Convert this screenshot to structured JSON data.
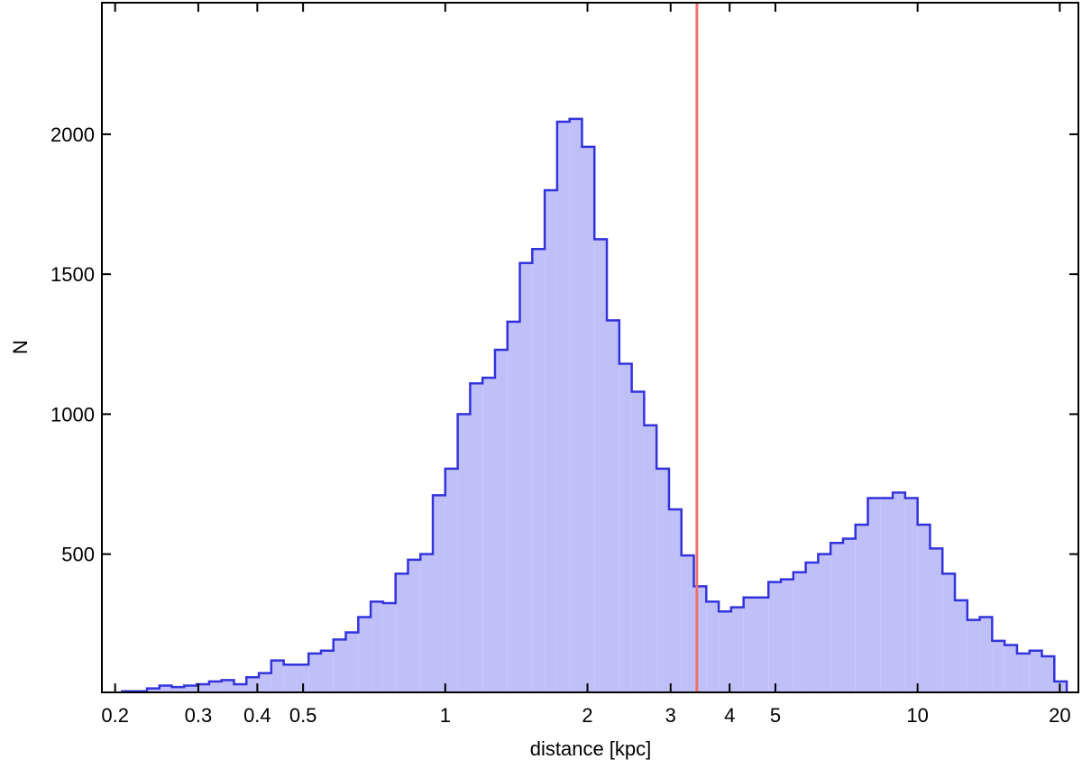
{
  "chart_data": {
    "type": "histogram",
    "x_label": "distance [kpc]",
    "y_label": "N",
    "xscale": "log",
    "bins": [
      0.1833,
      0.1948,
      0.2069,
      0.2198,
      0.2336,
      0.2482,
      0.2637,
      0.2801,
      0.2976,
      0.3162,
      0.336,
      0.357,
      0.3793,
      0.403,
      0.4281,
      0.4549,
      0.4833,
      0.5135,
      0.5456,
      0.5796,
      0.6158,
      0.6543,
      0.6952,
      0.7386,
      0.7848,
      0.8338,
      0.8859,
      0.9412,
      1.0,
      1.0625,
      1.1288,
      1.1993,
      1.2743,
      1.3539,
      1.4384,
      1.5283,
      1.6238,
      1.7252,
      1.833,
      1.9475,
      2.0691,
      2.1984,
      2.3357,
      2.4816,
      2.6367,
      2.8014,
      2.9764,
      3.1623,
      3.3598,
      3.5697,
      3.7927,
      4.0296,
      4.2813,
      4.5487,
      4.8329,
      5.1348,
      5.4555,
      5.7963,
      6.1584,
      6.5431,
      6.9519,
      7.3862,
      7.8476,
      8.3378,
      8.8587,
      9.4121,
      10.0,
      10.625,
      11.288,
      11.993,
      12.743,
      13.539,
      14.384,
      15.283,
      16.238,
      17.252,
      18.33,
      19.475,
      20.691
    ],
    "values": [
      5,
      5,
      10,
      10,
      20,
      30,
      25,
      30,
      35,
      45,
      50,
      35,
      60,
      75,
      120,
      105,
      105,
      145,
      155,
      195,
      220,
      275,
      330,
      325,
      430,
      480,
      500,
      710,
      805,
      1000,
      1110,
      1130,
      1230,
      1330,
      1540,
      1590,
      1800,
      2045,
      2055,
      1955,
      1625,
      1335,
      1180,
      1080,
      960,
      805,
      660,
      495,
      385,
      330,
      295,
      310,
      345,
      345,
      400,
      410,
      435,
      470,
      500,
      540,
      555,
      605,
      700,
      700,
      720,
      700,
      605,
      520,
      430,
      335,
      265,
      275,
      190,
      175,
      145,
      155,
      135,
      45
    ],
    "color": "#c0c0f8",
    "edge_color": "#3333dd",
    "vline": 3.41,
    "vline_color": "#f07070",
    "xlim": [
      0.1875,
      21.9
    ],
    "xticks": [
      0.2,
      0.3,
      0.4,
      0.5,
      1,
      2,
      3,
      4,
      5,
      10,
      20
    ],
    "ylim": [
      6,
      2470
    ],
    "yticks": [
      500,
      1000,
      1500,
      2000
    ]
  }
}
